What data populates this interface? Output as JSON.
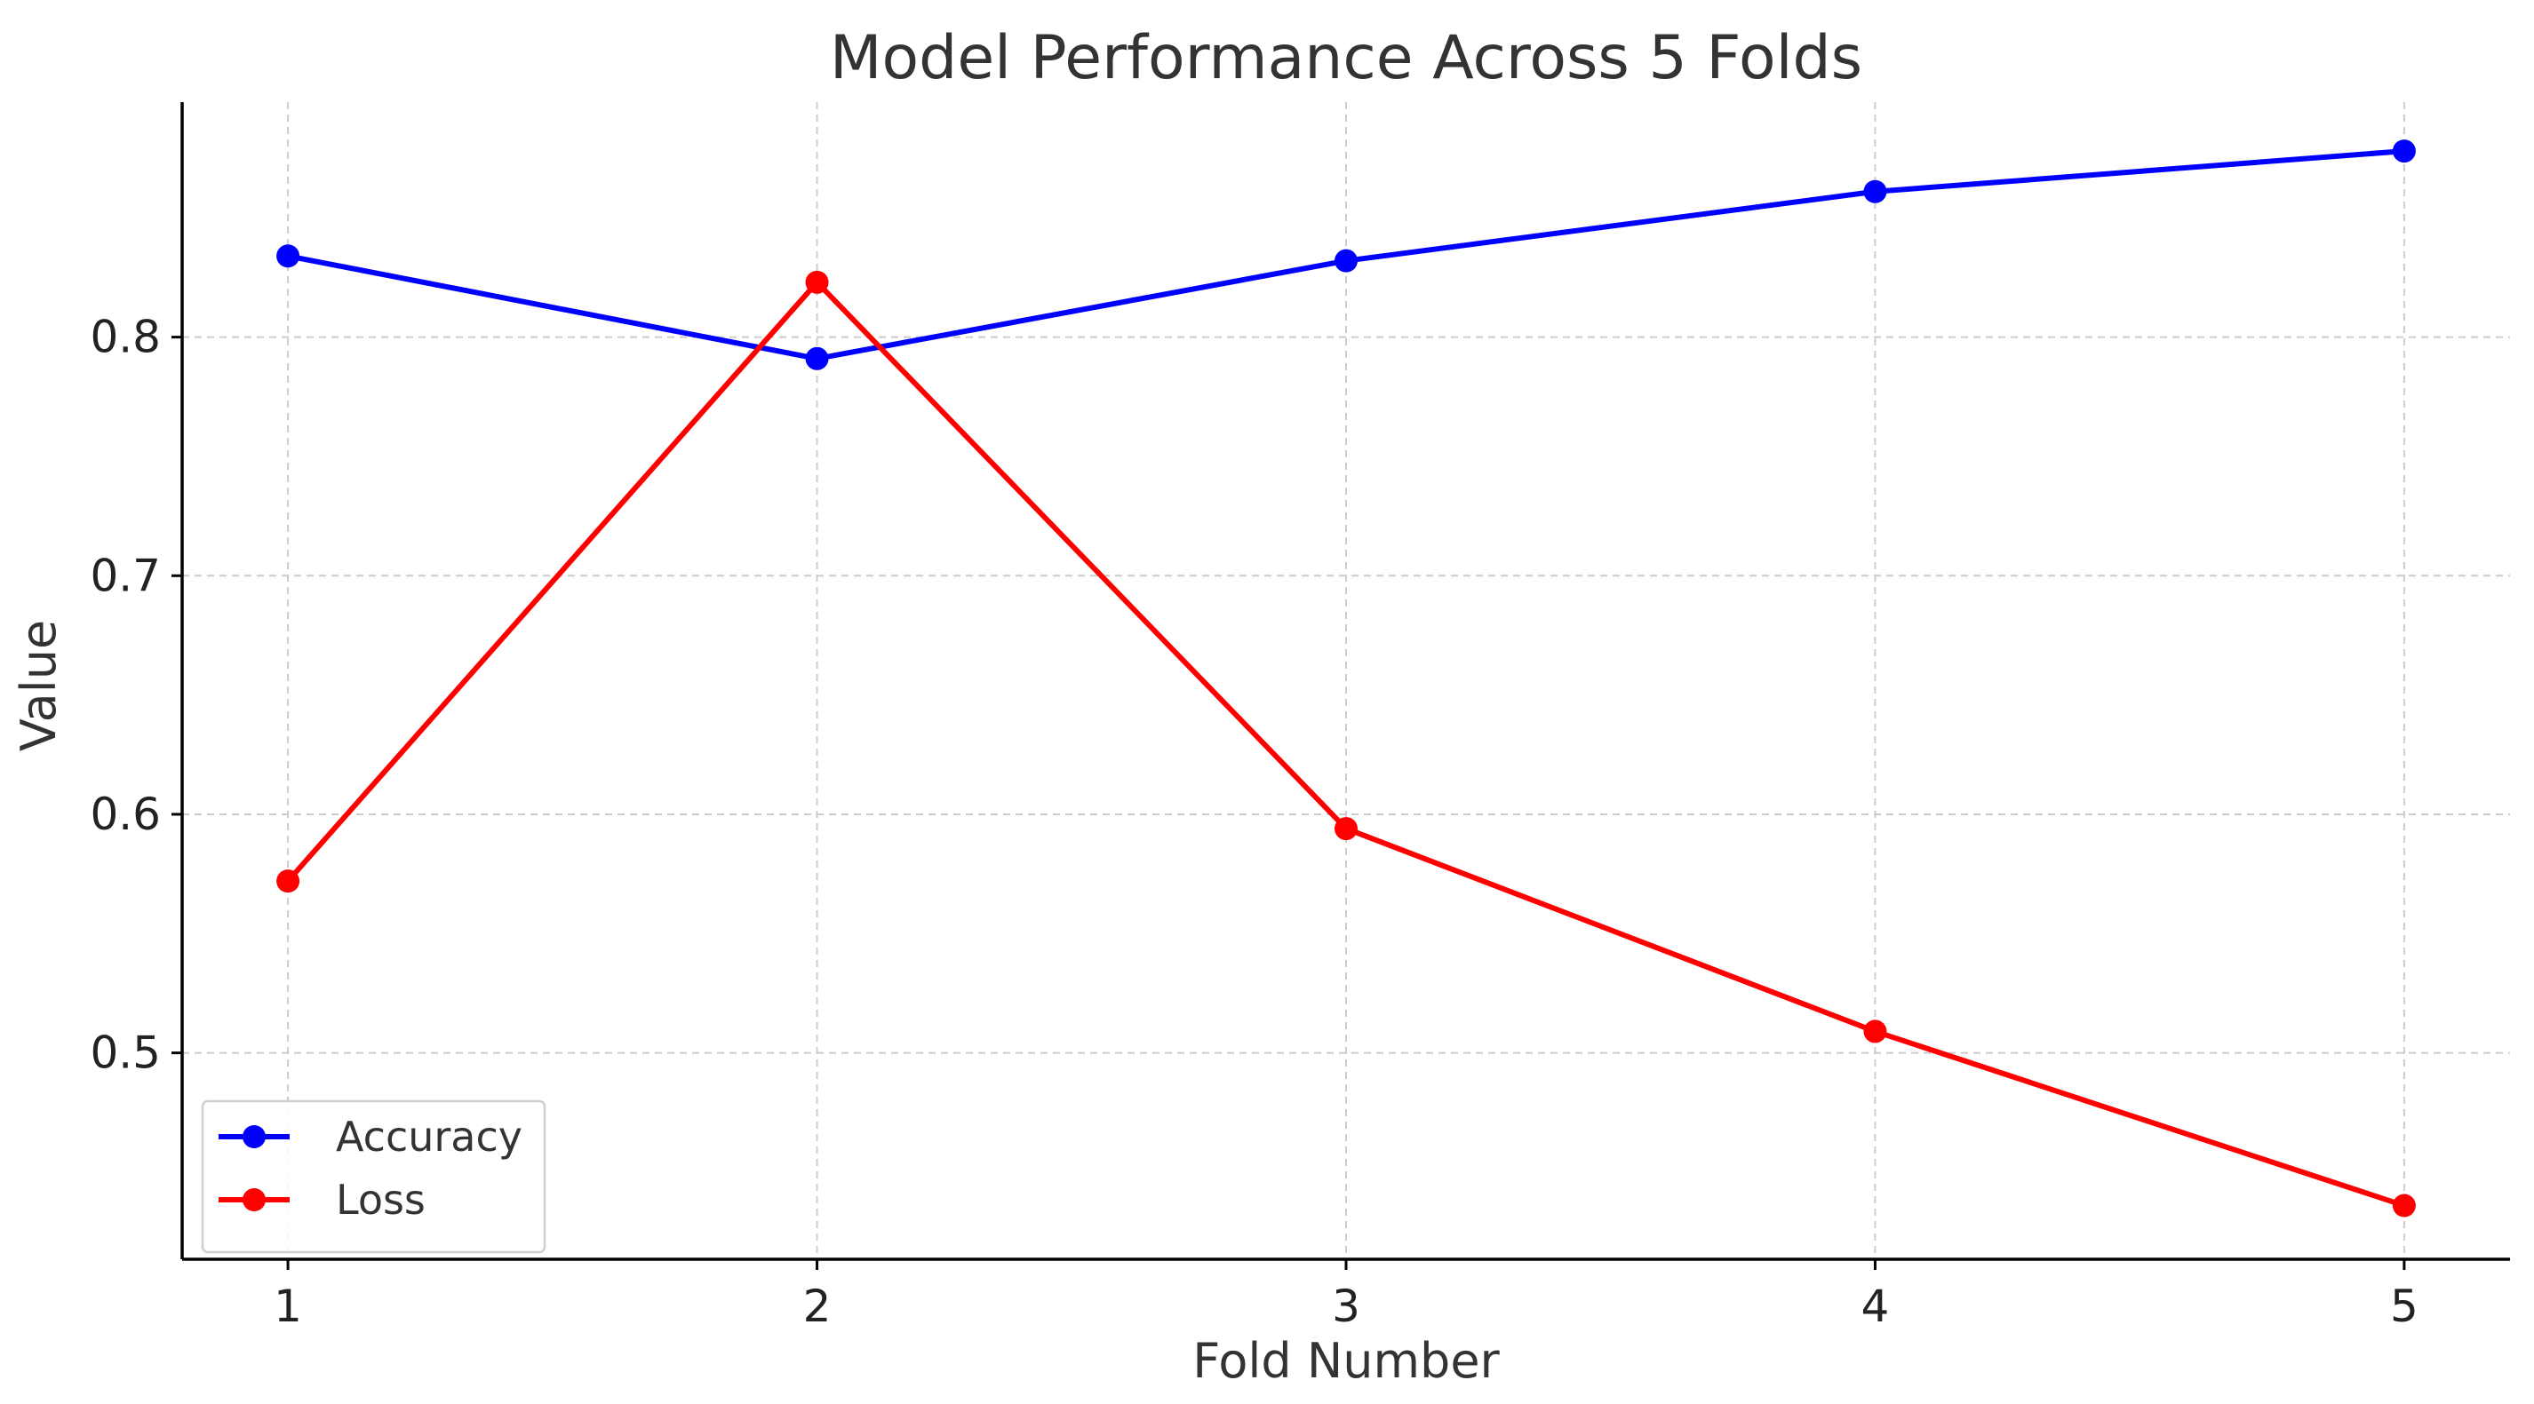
{
  "chart_data": {
    "type": "line",
    "title": "Model Performance Across 5 Folds",
    "xlabel": "Fold Number",
    "ylabel": "Value",
    "x": [
      1,
      2,
      3,
      4,
      5
    ],
    "xlim": [
      0.8,
      5.2
    ],
    "ylim": [
      0.4135,
      0.8985
    ],
    "yticks": [
      0.5,
      0.6,
      0.7,
      0.8
    ],
    "grid": true,
    "legend_position": "lower-left",
    "series": [
      {
        "name": "Accuracy",
        "color": "#0000ff",
        "marker": "circle",
        "values": [
          0.834,
          0.791,
          0.832,
          0.861,
          0.878
        ]
      },
      {
        "name": "Loss",
        "color": "#ff0000",
        "marker": "circle",
        "values": [
          0.572,
          0.823,
          0.594,
          0.509,
          0.436
        ]
      }
    ]
  }
}
